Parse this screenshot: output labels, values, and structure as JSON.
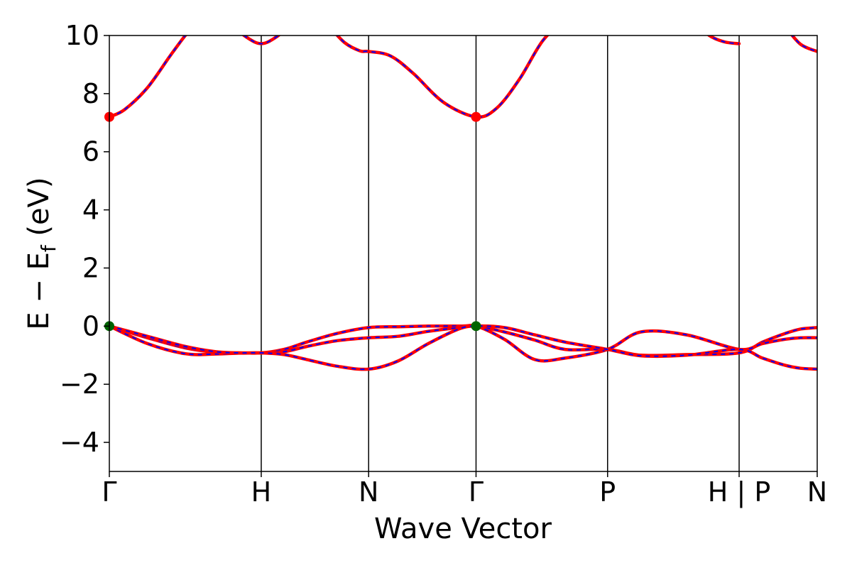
{
  "chart_data": {
    "type": "line",
    "xlabel": "Wave Vector",
    "ylabel_main": "E − E",
    "ylabel_sub": "f",
    "ylabel_unit": " (eV)",
    "ylim": [
      -5,
      10
    ],
    "yticks": [
      -4,
      -2,
      0,
      2,
      4,
      6,
      8,
      10
    ],
    "ytick_labels": [
      "−4",
      "−2",
      "0",
      "2",
      "4",
      "6",
      "8",
      "10"
    ],
    "xlim": [
      0,
      4.66
    ],
    "kpoint_ticks": [
      {
        "x": 0.0,
        "label": "Γ"
      },
      {
        "x": 1.0,
        "label": "H"
      },
      {
        "x": 1.707,
        "label": "N"
      },
      {
        "x": 2.414,
        "label": "Γ"
      },
      {
        "x": 3.28,
        "label": "P"
      },
      {
        "x": 4.146,
        "label": "H | P"
      },
      {
        "x": 4.66,
        "label": "N"
      }
    ],
    "line_colors": {
      "primary": "#ff0000",
      "overlay": "#0000ff"
    },
    "series": [
      {
        "x": [
          0.0,
          0.25,
          0.5,
          0.7,
          0.85,
          1.0,
          1.15,
          1.3,
          1.5,
          1.707,
          1.9,
          2.1,
          2.3,
          2.414,
          2.6,
          2.8,
          3.0,
          3.28,
          3.5,
          3.8,
          4.146,
          4.3,
          4.45,
          4.55,
          4.66
        ],
        "y": [
          0.0,
          -0.4,
          -0.75,
          -0.9,
          -0.92,
          -0.92,
          -0.8,
          -0.55,
          -0.25,
          -0.05,
          -0.02,
          0.0,
          0.0,
          0.0,
          -0.2,
          -0.48,
          -0.8,
          -0.8,
          -1.0,
          -0.98,
          -0.92,
          -0.55,
          -0.25,
          -0.1,
          -0.05
        ]
      },
      {
        "x": [
          0.0,
          0.25,
          0.5,
          0.7,
          0.85,
          1.0,
          1.15,
          1.3,
          1.5,
          1.707,
          1.9,
          2.1,
          2.3,
          2.414,
          2.6,
          2.8,
          3.0,
          3.28,
          3.5,
          3.8,
          4.146,
          4.3,
          4.45,
          4.55,
          4.66
        ],
        "y": [
          0.0,
          -0.6,
          -0.95,
          -0.96,
          -0.93,
          -0.92,
          -0.88,
          -0.7,
          -0.5,
          -0.4,
          -0.35,
          -0.18,
          -0.05,
          0.0,
          -0.45,
          -1.15,
          -1.1,
          -0.8,
          -0.2,
          -0.3,
          -0.8,
          -0.6,
          -0.45,
          -0.4,
          -0.4
        ]
      },
      {
        "x": [
          0.0,
          0.25,
          0.5,
          0.7,
          0.85,
          1.0,
          1.15,
          1.3,
          1.5,
          1.707,
          1.9,
          2.1,
          2.3,
          2.414,
          2.6,
          2.8,
          3.0,
          3.28,
          3.5,
          3.8,
          4.146,
          4.3,
          4.45,
          4.55,
          4.66
        ],
        "y": [
          0.0,
          -0.35,
          -0.7,
          -0.88,
          -0.92,
          -0.92,
          -0.98,
          -1.15,
          -1.38,
          -1.48,
          -1.2,
          -0.6,
          -0.1,
          0.0,
          -0.05,
          -0.3,
          -0.55,
          -0.8,
          -1.02,
          -1.0,
          -0.8,
          -1.1,
          -1.35,
          -1.45,
          -1.48
        ]
      },
      {
        "x": [
          0.0,
          0.1,
          0.25,
          0.4,
          0.5,
          0.6
        ],
        "y": [
          7.2,
          7.45,
          8.2,
          9.3,
          10.0,
          10.6
        ]
      },
      {
        "x": [
          0.8,
          0.9,
          1.0,
          1.1,
          1.2
        ],
        "y": [
          10.4,
          9.95,
          9.72,
          9.95,
          10.4
        ]
      },
      {
        "x": [
          1.45,
          1.55,
          1.65,
          1.707,
          1.85,
          2.0,
          2.2,
          2.414,
          2.55,
          2.7,
          2.85,
          3.0
        ],
        "y": [
          10.3,
          9.75,
          9.47,
          9.45,
          9.3,
          8.7,
          7.7,
          7.2,
          7.5,
          8.5,
          9.8,
          10.6
        ]
      },
      {
        "x": [
          3.85,
          3.95,
          4.05,
          4.146
        ],
        "y": [
          10.5,
          10.0,
          9.78,
          9.72
        ]
      },
      {
        "x": [
          4.45,
          4.55,
          4.66
        ],
        "y": [
          10.3,
          9.7,
          9.45
        ]
      }
    ],
    "markers": [
      {
        "x": 0.0,
        "y": 7.2,
        "color": "#ff0000"
      },
      {
        "x": 2.414,
        "y": 7.2,
        "color": "#ff0000"
      },
      {
        "x": 0.0,
        "y": 0.0,
        "color": "#006400"
      },
      {
        "x": 2.414,
        "y": 0.0,
        "color": "#006400"
      }
    ]
  }
}
